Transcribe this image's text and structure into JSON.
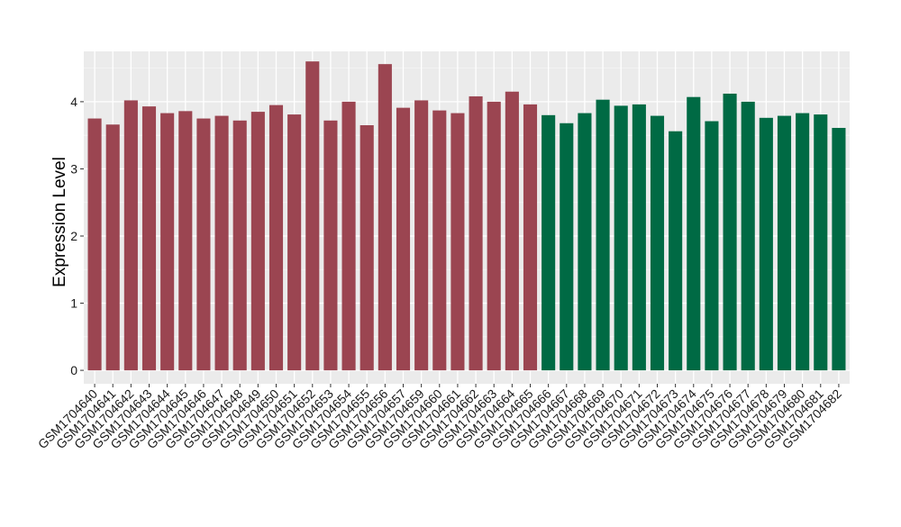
{
  "chart_data": {
    "type": "bar",
    "title": "",
    "xlabel": "",
    "ylabel": "Expression Level",
    "ylim": [
      -0.2,
      4.75
    ],
    "yticks": [
      0,
      1,
      2,
      3,
      4
    ],
    "grid": true,
    "background": "#ebebeb",
    "group_colors": [
      "#9b4551",
      "#006a44"
    ],
    "categories": [
      "GSM1704640",
      "GSM1704641",
      "GSM1704642",
      "GSM1704643",
      "GSM1704644",
      "GSM1704645",
      "GSM1704646",
      "GSM1704647",
      "GSM1704648",
      "GSM1704649",
      "GSM1704650",
      "GSM1704651",
      "GSM1704652",
      "GSM1704653",
      "GSM1704654",
      "GSM1704655",
      "GSM1704656",
      "GSM1704657",
      "GSM1704659",
      "GSM1704660",
      "GSM1704661",
      "GSM1704662",
      "GSM1704663",
      "GSM1704664",
      "GSM1704665",
      "GSM1704666",
      "GSM1704667",
      "GSM1704668",
      "GSM1704669",
      "GSM1704670",
      "GSM1704671",
      "GSM1704672",
      "GSM1704673",
      "GSM1704674",
      "GSM1704675",
      "GSM1704676",
      "GSM1704677",
      "GSM1704678",
      "GSM1704679",
      "GSM1704680",
      "GSM1704681",
      "GSM1704682"
    ],
    "values": [
      3.75,
      3.66,
      4.02,
      3.93,
      3.83,
      3.86,
      3.75,
      3.79,
      3.72,
      3.85,
      3.95,
      3.81,
      4.6,
      3.72,
      4.0,
      3.65,
      4.56,
      3.91,
      4.02,
      3.87,
      3.83,
      4.08,
      4.0,
      4.15,
      3.96,
      3.8,
      3.68,
      3.83,
      4.03,
      3.94,
      3.96,
      3.79,
      3.56,
      4.07,
      3.71,
      4.12,
      4.0,
      3.76,
      3.79,
      3.83,
      3.81,
      3.61
    ],
    "groups": [
      0,
      0,
      0,
      0,
      0,
      0,
      0,
      0,
      0,
      0,
      0,
      0,
      0,
      0,
      0,
      0,
      0,
      0,
      0,
      0,
      0,
      0,
      0,
      0,
      0,
      1,
      1,
      1,
      1,
      1,
      1,
      1,
      1,
      1,
      1,
      1,
      1,
      1,
      1,
      1,
      1,
      1
    ]
  }
}
